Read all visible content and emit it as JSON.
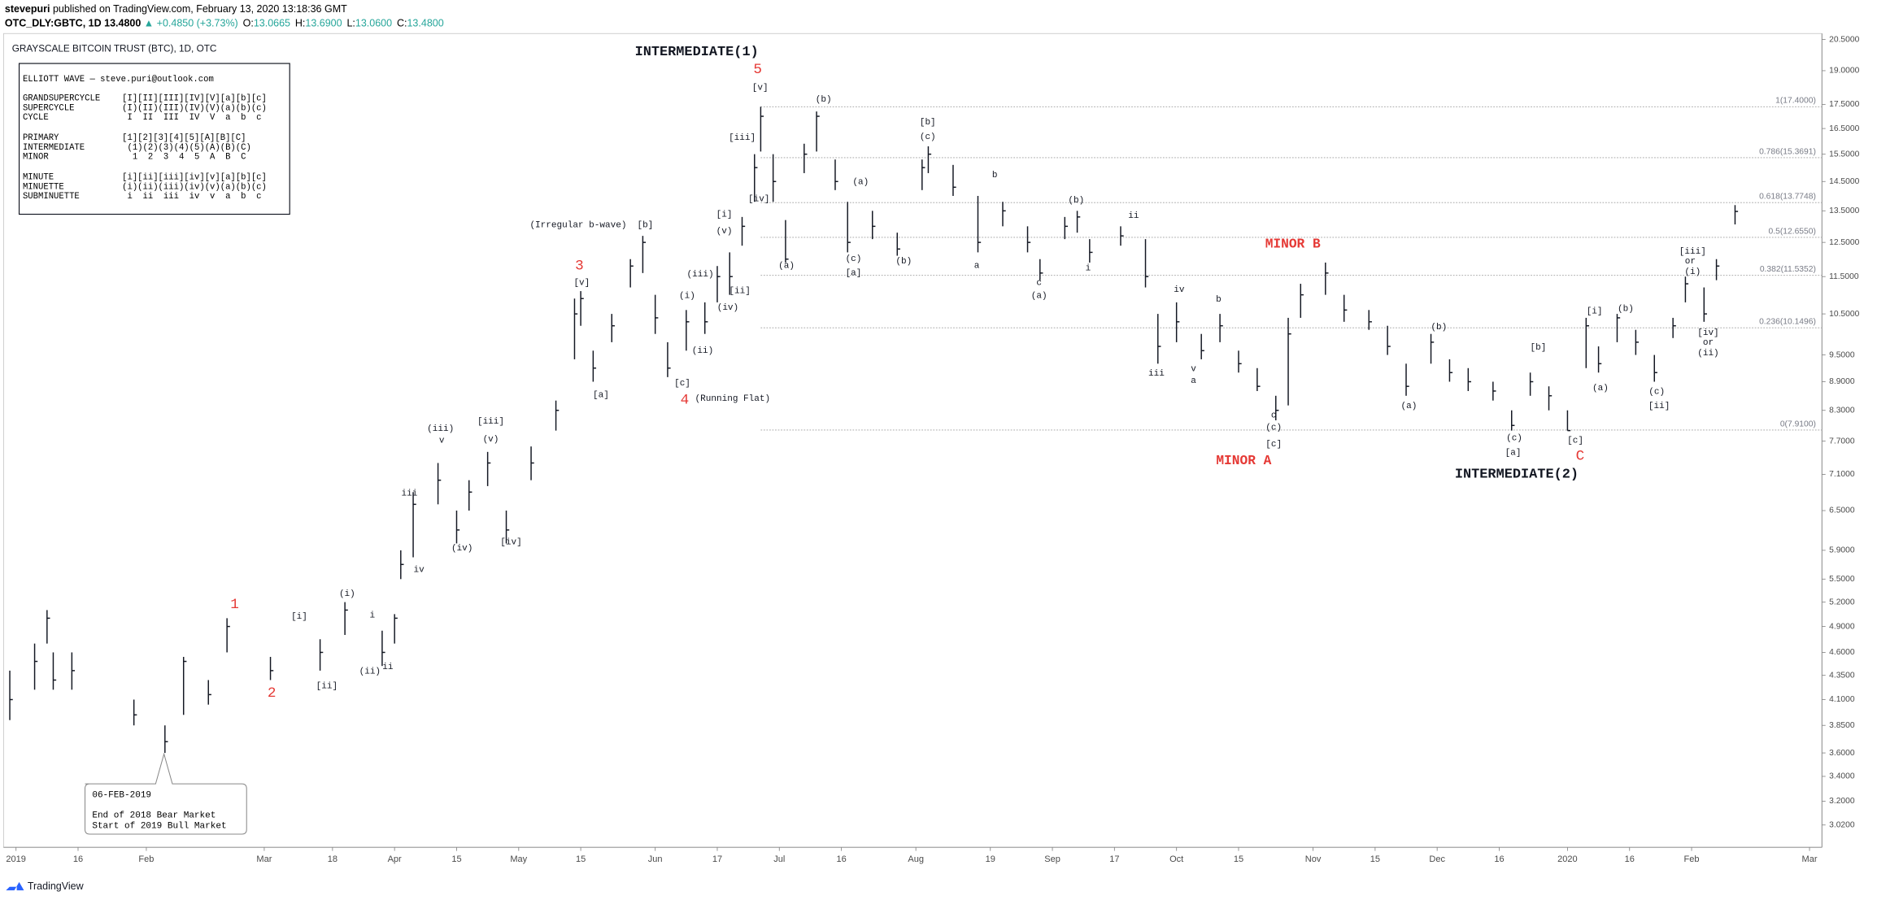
{
  "header": {
    "author": "stevepuri",
    "published": "published on TradingView.com, February 13, 2020 13:18:36 GMT",
    "symbol": "OTC_DLY:GBTC, 1D",
    "last": "13.4800",
    "change": "▲ +0.4850 (+3.73%)",
    "quote": [
      {
        "label": "O:",
        "value": "13.0665"
      },
      {
        "label": "H:",
        "value": "13.6900"
      },
      {
        "label": "L:",
        "value": "13.0600"
      },
      {
        "label": "C:",
        "value": "13.4800"
      }
    ]
  },
  "footer": {
    "brand": "TradingView"
  },
  "legend_box": {
    "title": "ELLIOTT WAVE — steve.puri@outlook.com",
    "rows": [
      [
        "GRANDSUPERCYCLE",
        "[I][II][III][IV][V][a][b][c]"
      ],
      [
        "SUPERCYCLE",
        "(I)(II)(III)(IV)(V)(a)(b)(c)"
      ],
      [
        "CYCLE",
        " I  II  III  IV  V  a  b  c"
      ],
      [
        "PRIMARY",
        "[1][2][3][4][5][A][B][C]"
      ],
      [
        "INTERMEDIATE",
        " (1)(2)(3)(4)(5)(A)(B)(C)"
      ],
      [
        "MINOR",
        "  1  2  3  4  5  A  B  C"
      ],
      [
        "MINUTE",
        "[i][ii][iii][iv][v][a][b][c]"
      ],
      [
        "MINUETTE",
        "(i)(ii)(iii)(iv)(v)(a)(b)(c)"
      ],
      [
        "SUBMINUETTE",
        " i  ii  iii  iv  v  a  b  c"
      ]
    ]
  },
  "callout": [
    "06-FEB-2019",
    "End of 2018 Bear Market",
    "Start of 2019 Bull Market"
  ],
  "chart_data": {
    "type": "ohlc",
    "title": "GRAYSCALE BITCOIN TRUST (BTC), 1D, OTC",
    "log_scale": true,
    "color": "#131722",
    "x": [
      0,
      4,
      6,
      7,
      10,
      20,
      25,
      28,
      32,
      35,
      42,
      50,
      54,
      60,
      62,
      63,
      65,
      69,
      72,
      74,
      77,
      80,
      84,
      88,
      91,
      92,
      94,
      97,
      100,
      102,
      104,
      106,
      109,
      112,
      114,
      116,
      118,
      120,
      121,
      123,
      125,
      128,
      130,
      133,
      135,
      139,
      143,
      147,
      148,
      152,
      156,
      160,
      164,
      166,
      170,
      172,
      174,
      179,
      183,
      185,
      188,
      192,
      195,
      198,
      201,
      204,
      206,
      208,
      212,
      215,
      219,
      222,
      225,
      229,
      232,
      235,
      239,
      242,
      245,
      248,
      251,
      254,
      256,
      259,
      262,
      265,
      268,
      270,
      273,
      275,
      278
    ],
    "high": [
      4.4,
      4.7,
      5.1,
      4.6,
      4.6,
      4.1,
      3.85,
      4.55,
      4.3,
      5.0,
      4.55,
      4.75,
      5.2,
      4.85,
      5.05,
      5.9,
      6.8,
      7.3,
      6.5,
      7.0,
      7.5,
      6.5,
      7.6,
      8.5,
      10.9,
      11.1,
      9.6,
      10.5,
      12.0,
      12.7,
      11.0,
      9.8,
      10.6,
      10.8,
      11.8,
      12.2,
      13.3,
      15.5,
      17.4,
      15.5,
      13.2,
      15.9,
      17.2,
      15.3,
      13.8,
      13.5,
      12.8,
      15.3,
      15.8,
      15.1,
      14.0,
      13.8,
      13.0,
      12.0,
      13.3,
      13.5,
      12.6,
      13.0,
      12.6,
      10.5,
      10.8,
      10.0,
      10.5,
      9.6,
      9.2,
      8.6,
      10.4,
      11.3,
      11.9,
      11.0,
      10.6,
      10.2,
      9.3,
      10.0,
      9.4,
      9.2,
      8.9,
      8.3,
      9.1,
      8.8,
      8.3,
      10.4,
      9.7,
      10.5,
      10.1,
      9.5,
      10.4,
      11.5,
      11.2,
      12.0,
      13.69
    ],
    "low": [
      3.9,
      4.2,
      4.7,
      4.2,
      4.2,
      3.85,
      3.6,
      3.95,
      4.05,
      4.6,
      4.3,
      4.4,
      4.8,
      4.45,
      4.7,
      5.5,
      5.8,
      6.6,
      6.0,
      6.5,
      6.9,
      6.0,
      7.0,
      7.9,
      9.4,
      10.2,
      8.9,
      9.8,
      11.2,
      11.6,
      10.0,
      9.0,
      9.6,
      10.0,
      10.8,
      11.0,
      12.4,
      13.8,
      15.6,
      13.8,
      11.9,
      14.8,
      15.6,
      14.2,
      12.2,
      12.6,
      12.1,
      14.2,
      14.8,
      14.0,
      12.2,
      13.0,
      12.2,
      11.4,
      12.6,
      12.8,
      11.9,
      12.4,
      11.2,
      9.3,
      9.8,
      9.4,
      9.8,
      9.1,
      8.7,
      8.1,
      8.4,
      10.4,
      11.0,
      10.3,
      10.1,
      9.5,
      8.6,
      9.3,
      8.9,
      8.7,
      8.5,
      7.9,
      8.6,
      8.3,
      7.9,
      9.2,
      9.1,
      9.8,
      9.5,
      8.9,
      9.9,
      10.8,
      10.3,
      11.4,
      13.06
    ],
    "close": [
      4.1,
      4.5,
      5.0,
      4.3,
      4.4,
      3.95,
      3.7,
      4.5,
      4.15,
      4.9,
      4.4,
      4.6,
      5.1,
      4.6,
      5.0,
      5.7,
      6.6,
      7.0,
      6.2,
      6.8,
      7.3,
      6.2,
      7.3,
      8.3,
      10.5,
      10.9,
      9.2,
      10.2,
      11.8,
      12.5,
      10.4,
      9.2,
      10.3,
      10.3,
      11.5,
      11.5,
      13.0,
      15.0,
      17.0,
      14.5,
      12.0,
      15.5,
      17.0,
      14.5,
      12.5,
      13.0,
      12.3,
      15.0,
      15.5,
      14.3,
      12.5,
      13.5,
      12.5,
      11.6,
      13.0,
      13.3,
      12.2,
      12.7,
      11.5,
      9.7,
      10.3,
      9.6,
      10.2,
      9.3,
      8.8,
      8.3,
      10.0,
      11.0,
      11.6,
      10.6,
      10.3,
      9.7,
      8.8,
      9.8,
      9.1,
      8.9,
      8.7,
      8.0,
      8.9,
      8.6,
      7.9,
      10.2,
      9.3,
      10.4,
      9.8,
      9.1,
      10.2,
      11.3,
      10.5,
      11.8,
      13.48
    ],
    "xlim": [
      -1,
      292
    ],
    "ylim": [
      2.86,
      20.8
    ],
    "xticks": [
      {
        "value": 1,
        "label": "2019"
      },
      {
        "value": 11,
        "label": "16"
      },
      {
        "value": 22,
        "label": "Feb"
      },
      {
        "value": 41,
        "label": "Mar"
      },
      {
        "value": 52,
        "label": "18"
      },
      {
        "value": 62,
        "label": "Apr"
      },
      {
        "value": 72,
        "label": "15"
      },
      {
        "value": 82,
        "label": "May"
      },
      {
        "value": 92,
        "label": "15"
      },
      {
        "value": 104,
        "label": "Jun"
      },
      {
        "value": 114,
        "label": "17"
      },
      {
        "value": 124,
        "label": "Jul"
      },
      {
        "value": 134,
        "label": "16"
      },
      {
        "value": 146,
        "label": "Aug"
      },
      {
        "value": 158,
        "label": "19"
      },
      {
        "value": 168,
        "label": "Sep"
      },
      {
        "value": 178,
        "label": "17"
      },
      {
        "value": 188,
        "label": "Oct"
      },
      {
        "value": 198,
        "label": "15"
      },
      {
        "value": 210,
        "label": "Nov"
      },
      {
        "value": 220,
        "label": "15"
      },
      {
        "value": 230,
        "label": "Dec"
      },
      {
        "value": 240,
        "label": "16"
      },
      {
        "value": 251,
        "label": "2020"
      },
      {
        "value": 261,
        "label": "16"
      },
      {
        "value": 271,
        "label": "Feb"
      },
      {
        "value": 290,
        "label": "Mar"
      }
    ],
    "yticks": [
      {
        "value": 20.5,
        "label": "20.5000"
      },
      {
        "value": 19,
        "label": "19.0000"
      },
      {
        "value": 17.5,
        "label": "17.5000"
      },
      {
        "value": 16.5,
        "label": "16.5000"
      },
      {
        "value": 15.5,
        "label": "15.5000"
      },
      {
        "value": 14.5,
        "label": "14.5000"
      },
      {
        "value": 13.5,
        "label": "13.5000"
      },
      {
        "value": 12.5,
        "label": "12.5000"
      },
      {
        "value": 11.5,
        "label": "11.5000"
      },
      {
        "value": 10.5,
        "label": "10.5000"
      },
      {
        "value": 9.5,
        "label": "9.5000"
      },
      {
        "value": 8.9,
        "label": "8.9000"
      },
      {
        "value": 8.3,
        "label": "8.3000"
      },
      {
        "value": 7.7,
        "label": "7.7000"
      },
      {
        "value": 7.1,
        "label": "7.1000"
      },
      {
        "value": 6.5,
        "label": "6.5000"
      },
      {
        "value": 5.9,
        "label": "5.9000"
      },
      {
        "value": 5.5,
        "label": "5.5000"
      },
      {
        "value": 5.2,
        "label": "5.2000"
      },
      {
        "value": 4.9,
        "label": "4.9000"
      },
      {
        "value": 4.6,
        "label": "4.6000"
      },
      {
        "value": 4.35,
        "label": "4.3500"
      },
      {
        "value": 4.1,
        "label": "4.1000"
      },
      {
        "value": 3.85,
        "label": "3.8500"
      },
      {
        "value": 3.6,
        "label": "3.6000"
      },
      {
        "value": 3.4,
        "label": "3.4000"
      },
      {
        "value": 3.2,
        "label": "3.2000"
      },
      {
        "value": 3.02,
        "label": "3.0200"
      }
    ],
    "fib_start": 121,
    "fib_levels": [
      {
        "value": 17.4,
        "label": "1(17.4000)"
      },
      {
        "value": 15.3691,
        "label": "0.786(15.3691)"
      },
      {
        "value": 13.7748,
        "label": "0.618(13.7748)"
      },
      {
        "value": 12.655,
        "label": "0.5(12.6550)"
      },
      {
        "value": 11.5352,
        "label": "0.382(11.5352)"
      },
      {
        "value": 10.1496,
        "label": "0.236(10.1496)"
      },
      {
        "value": 7.91,
        "label": "0(7.9100)"
      }
    ],
    "annotations": [
      "INTERMEDIATE(1)",
      "5",
      "[v]",
      "(b)",
      "[b]",
      "(c)",
      "[iii]",
      "(a)",
      "b",
      "[iv]",
      "(b)",
      "ii",
      "[i]",
      "(v)",
      "(Irregular b-wave)",
      "[b]",
      "(a)",
      "(c)",
      "[a]",
      "(b)",
      "a",
      "i",
      "c",
      "(a)",
      "MINOR B",
      "3",
      "[v]",
      "(iii)",
      "(i)",
      "[ii]",
      "(iv)",
      "iv",
      "b",
      "(ii)",
      "[a]",
      "[c]",
      "4",
      "(Running Flat)",
      "iii",
      "v",
      "a",
      "c",
      "(c)",
      "[c]",
      "MINOR A",
      "(b)",
      "[b]",
      "(a)",
      "(c)",
      "[a]",
      "[c]",
      "C",
      "INTERMEDIATE(2)",
      "[i]",
      "(b)",
      "(a)",
      "(c)",
      "[ii]",
      "[iii]",
      "or",
      "(i)",
      "[iv]",
      "or",
      "(ii)",
      "(iii)",
      "v",
      "[iii]",
      "(v)",
      "iii",
      "(iv)",
      "[iv]",
      "iv",
      "1",
      "(i)",
      "[i]",
      "i",
      "2",
      "[ii]",
      "(ii)",
      "ii"
    ]
  }
}
